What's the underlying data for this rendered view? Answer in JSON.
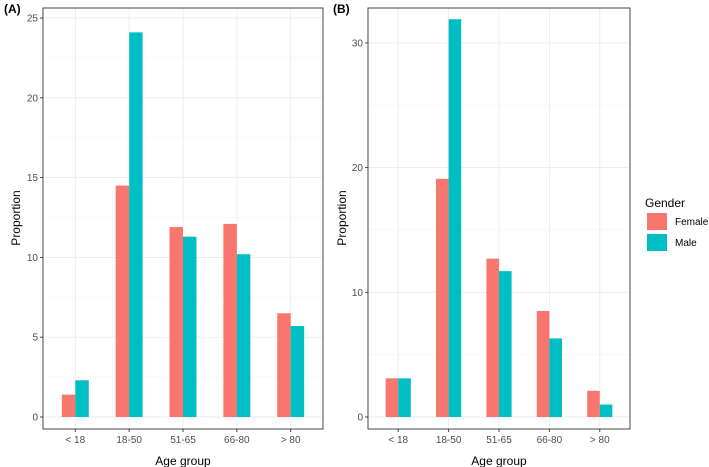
{
  "chart_data": [
    {
      "type": "bar",
      "panel_label": "(A)",
      "categories": [
        "< 18",
        "18-50",
        "51-65",
        "66-80",
        "> 80"
      ],
      "series": [
        {
          "name": "Female",
          "values": [
            1.4,
            14.5,
            11.9,
            12.1,
            6.5
          ]
        },
        {
          "name": "Male",
          "values": [
            2.3,
            24.1,
            11.3,
            10.2,
            5.7
          ]
        }
      ],
      "xlabel": "Age group",
      "ylabel": "Proportion",
      "ylim": [
        0,
        25
      ],
      "yticks": [
        0,
        5,
        10,
        15,
        20,
        25
      ],
      "grid": true
    },
    {
      "type": "bar",
      "panel_label": "(B)",
      "categories": [
        "< 18",
        "18-50",
        "51-65",
        "66-80",
        "> 80"
      ],
      "series": [
        {
          "name": "Female",
          "values": [
            3.1,
            19.1,
            12.7,
            8.5,
            2.1
          ]
        },
        {
          "name": "Male",
          "values": [
            3.1,
            31.9,
            11.7,
            6.3,
            1.0
          ]
        }
      ],
      "xlabel": "Age group",
      "ylabel": "Proportion",
      "ylim": [
        0,
        32
      ],
      "yticks": [
        0,
        10,
        20,
        30
      ],
      "grid": true
    }
  ],
  "legend": {
    "title": "Gender",
    "position": "right",
    "entries": [
      "Female",
      "Male"
    ]
  },
  "colors": {
    "Female": "#F8766D",
    "Male": "#00BFC4"
  }
}
